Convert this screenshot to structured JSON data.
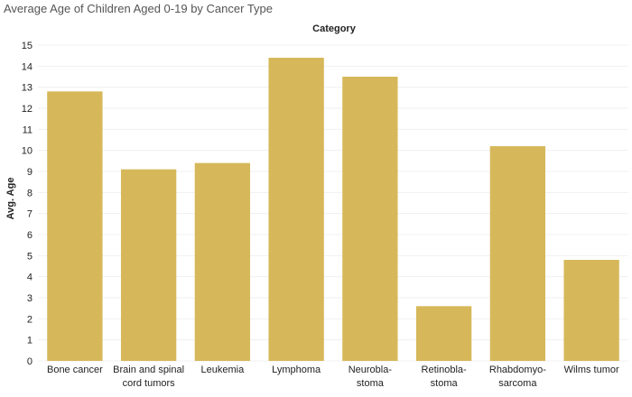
{
  "chart_data": {
    "type": "bar",
    "title": "Average Age of Children Aged 0-19 by Cancer Type",
    "column_header": "Category",
    "xlabel": "",
    "ylabel": "Avg. Age",
    "categories": [
      [
        "Bone cancer"
      ],
      [
        "Brain and spinal",
        "cord tumors"
      ],
      [
        "Leukemia"
      ],
      [
        "Lymphoma"
      ],
      [
        "Neurobla-",
        "stoma"
      ],
      [
        "Retinobla-",
        "stoma"
      ],
      [
        "Rhabdomyo-",
        "sarcoma"
      ],
      [
        "Wilms tumor"
      ]
    ],
    "values": [
      12.8,
      9.1,
      9.4,
      14.4,
      13.5,
      2.6,
      10.2,
      4.8
    ],
    "ylim": [
      0,
      15
    ],
    "yticks": [
      0,
      1,
      2,
      3,
      4,
      5,
      6,
      7,
      8,
      9,
      10,
      11,
      12,
      13,
      14,
      15
    ],
    "grid": true,
    "bar_color": "#D6B85A"
  }
}
